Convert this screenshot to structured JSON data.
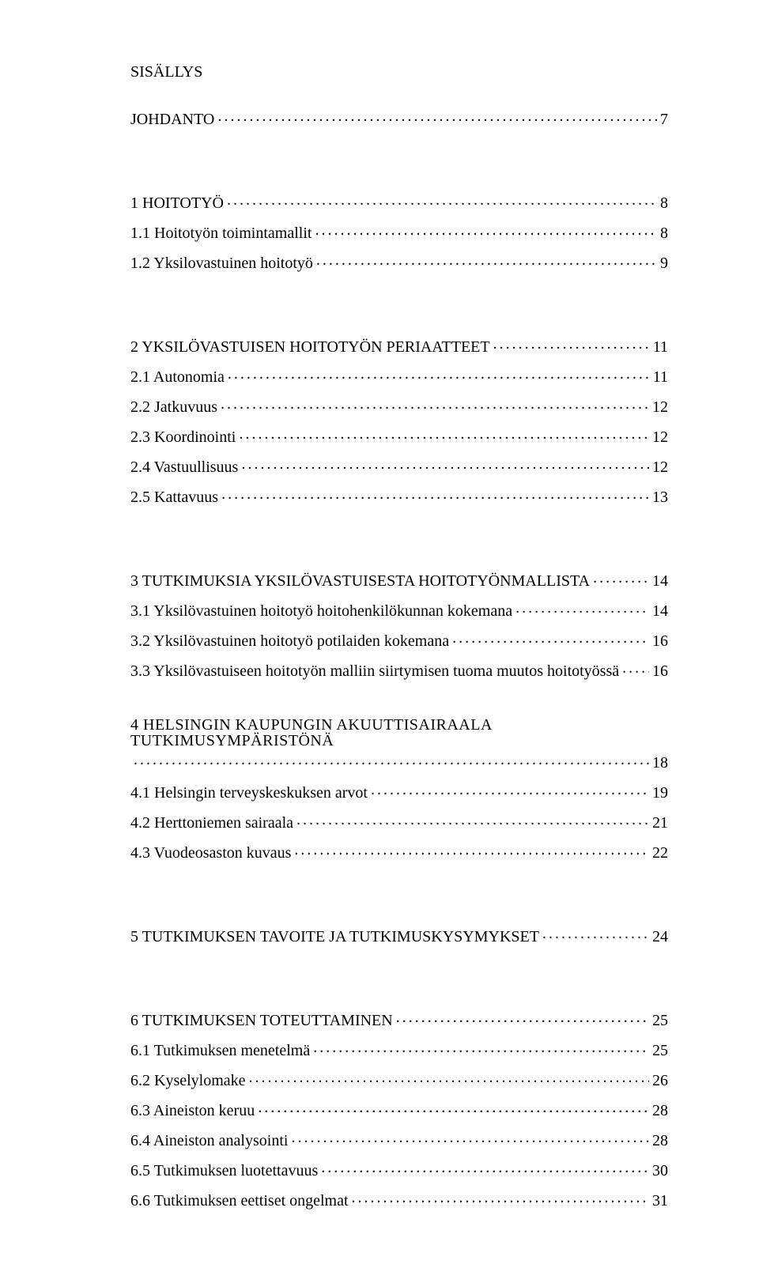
{
  "title": "SISÄLLYS",
  "entries": [
    {
      "label": "JOHDANTO",
      "page": "7",
      "heading": true
    },
    {
      "label": "1 HOITOTYÖ",
      "page": "8",
      "heading": true
    },
    {
      "label": "1.1 Hoitotyön toimintamallit",
      "page": "8"
    },
    {
      "label": "1.2 Yksilovastuinen hoitotyö",
      "page": "9"
    },
    {
      "label": "2 YKSILÖVASTUISEN HOITOTYÖN PERIAATTEET",
      "page": "11",
      "heading": true
    },
    {
      "label": "2.1 Autonomia",
      "page": "11"
    },
    {
      "label": "2.2 Jatkuvuus",
      "page": "12"
    },
    {
      "label": "2.3 Koordinointi",
      "page": "12"
    },
    {
      "label": "2.4 Vastuullisuus",
      "page": "12"
    },
    {
      "label": "2.5 Kattavuus",
      "page": "13"
    },
    {
      "label": "3 TUTKIMUKSIA YKSILÖVASTUISESTA HOITOTYÖNMALLISTA",
      "page": "14",
      "heading": true
    },
    {
      "label": "3.1 Yksilövastuinen hoitotyö hoitohenkilökunnan kokemana",
      "page": "14"
    },
    {
      "label": "3.2 Yksilövastuinen hoitotyö potilaiden kokemana",
      "page": "16"
    },
    {
      "label": "3.3 Yksilövastuiseen hoitotyön malliin siirtymisen tuoma muutos hoitotyössä",
      "page": "16"
    },
    {
      "label": "4 HELSINGIN KAUPUNGIN AKUUTTISAIRAALA TUTKIMUSYMPÄRISTÖNÄ",
      "page": "18",
      "heading": true,
      "wrap": true
    },
    {
      "label": "4.1 Helsingin terveyskeskuksen arvot",
      "page": "19"
    },
    {
      "label": "4.2 Herttoniemen sairaala",
      "page": "21"
    },
    {
      "label": "4.3 Vuodeosaston kuvaus",
      "page": "22"
    },
    {
      "label": "5 TUTKIMUKSEN TAVOITE JA TUTKIMUSKYSYMYKSET",
      "page": "24",
      "heading": true
    },
    {
      "label": "6 TUTKIMUKSEN TOTEUTTAMINEN",
      "page": "25",
      "heading": true
    },
    {
      "label": "6.1 Tutkimuksen menetelmä",
      "page": "25"
    },
    {
      "label": "6.2 Kyselylomake",
      "page": "26"
    },
    {
      "label": "6.3 Aineiston keruu",
      "page": "28"
    },
    {
      "label": "6.4 Aineiston analysointi",
      "page": "28"
    },
    {
      "label": "6.5 Tutkimuksen luotettavuus",
      "page": "30"
    },
    {
      "label": "6.6 Tutkimuksen eettiset ongelmat",
      "page": "31"
    }
  ],
  "colors": {
    "text": "#000000",
    "background": "#ffffff"
  },
  "typography": {
    "font_family": "Times New Roman",
    "title_fontsize_pt": 15,
    "entry_fontsize_pt": 15
  }
}
